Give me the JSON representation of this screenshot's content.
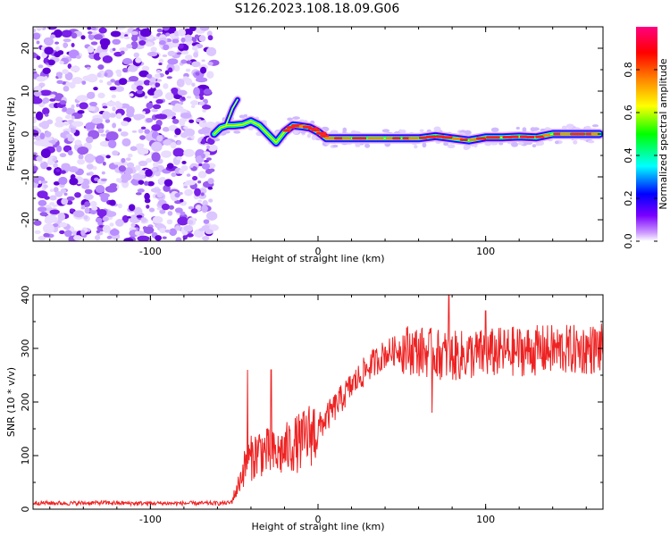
{
  "title": "S126.2023.108.18.09.G06",
  "chart_data": [
    {
      "type": "heatmap",
      "title": "",
      "xlabel": "Height of straight line (km)",
      "ylabel": "Frequency (Hz)",
      "xlim": [
        -170,
        170
      ],
      "ylim": [
        -25,
        25
      ],
      "xticks": [
        -100,
        0,
        100
      ],
      "yticks": [
        -20,
        -10,
        0,
        10,
        20
      ],
      "colorbar": {
        "label": "Normalized spectral amplitude",
        "range": [
          0.0,
          1.0
        ],
        "ticks": [
          0.0,
          0.2,
          0.4,
          0.6,
          0.8
        ],
        "tick_labels": [
          "0.0",
          "0.2",
          "0.4",
          "0.6",
          "0.8"
        ],
        "colors": [
          "#ffffff",
          "#cc99ff",
          "#7a00ff",
          "#0000ff",
          "#00ffff",
          "#00ff00",
          "#ffff00",
          "#ff8000",
          "#ff0000",
          "#ff0080"
        ]
      },
      "noise_region_x": [
        -170,
        -62
      ],
      "ridge": {
        "x": [
          -62,
          -58,
          -54,
          -50,
          -45,
          -40,
          -35,
          -30,
          -25,
          -20,
          -15,
          -10,
          -5,
          0,
          5,
          10,
          20,
          30,
          40,
          50,
          60,
          70,
          80,
          90,
          100,
          110,
          120,
          130,
          140,
          150,
          160,
          168
        ],
        "y": [
          0,
          1.5,
          2.0,
          2.0,
          2.2,
          3.0,
          2.0,
          0.0,
          -2.0,
          0.5,
          2.0,
          1.8,
          1.5,
          0.5,
          -1.0,
          -1.0,
          -1.0,
          -1.0,
          -1.0,
          -1.0,
          -1.0,
          -0.5,
          -1.0,
          -1.5,
          -0.8,
          -0.8,
          -0.6,
          -0.8,
          0.0,
          0.0,
          0.0,
          0.0
        ]
      },
      "spur": {
        "x": [
          -55,
          -51,
          -48
        ],
        "y": [
          2.0,
          6.0,
          8.0
        ]
      }
    },
    {
      "type": "line",
      "title": "",
      "xlabel": "Height of straight line (km)",
      "ylabel": "SNR (10 * v/v)",
      "xlim": [
        -170,
        170
      ],
      "ylim": [
        0,
        400
      ],
      "xticks": [
        -100,
        0,
        100
      ],
      "yticks": [
        0,
        100,
        200,
        300,
        400
      ],
      "color": "#ee2222",
      "series": [
        {
          "x": [
            -170,
            -150,
            -130,
            -110,
            -90,
            -70,
            -60,
            -52,
            -48,
            -45,
            -42,
            -38,
            -35,
            -30,
            -25,
            -20,
            -15,
            -10,
            -5,
            0,
            5,
            10,
            20,
            30,
            40,
            50,
            60,
            70,
            80,
            90,
            100,
            110,
            120,
            130,
            140,
            150,
            160,
            170
          ],
          "values": [
            12,
            11,
            12,
            11,
            11,
            11,
            11,
            12,
            40,
            70,
            90,
            100,
            110,
            105,
            100,
            110,
            120,
            125,
            140,
            150,
            170,
            190,
            230,
            265,
            290,
            300,
            295,
            290,
            285,
            288,
            290,
            293,
            295,
            296,
            298,
            297,
            298,
            300
          ]
        }
      ],
      "spikes": [
        {
          "x": -42,
          "value": 260
        },
        {
          "x": -28,
          "value": 260
        },
        {
          "x": 78,
          "value": 400
        },
        {
          "x": 68,
          "value": 180
        },
        {
          "x": 100,
          "value": 370
        }
      ]
    }
  ]
}
